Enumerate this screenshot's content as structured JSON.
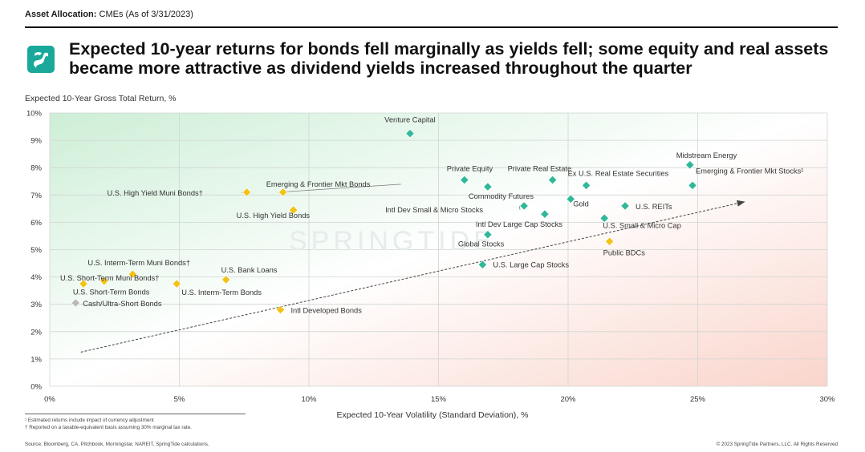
{
  "header": {
    "label_bold": "Asset Allocation:",
    "label_rest": " CMEs (As of 3/31/2023)"
  },
  "title": "Expected 10-year returns for bonds fell marginally as yields fell; some equity and real assets became more attractive as dividend yields increased throughout the quarter",
  "watermark": "SPRINGTIDE",
  "colors": {
    "equity": "#2fb89a",
    "bonds": "#f2c215",
    "cash": "#b9b9b9",
    "arrow": "#444444",
    "bg_green": "#d5efdc",
    "bg_red": "#fbd9d2",
    "logo": "#1aa89b"
  },
  "footnotes": {
    "f1": "¹ Estimated returns include impact of currency adjustment",
    "f2": "† Reported on a taxable-equivalent basis assuming 30% marginal tax rate.",
    "source": "Source: Bloomberg, CA, Pitchbook, Morningstar, NAREIT, SpringTide calculations.",
    "copyright": "© 2023 SpringTide Partners, LLC. All Rights Reserved"
  },
  "chart_data": {
    "type": "scatter",
    "xlabel": "Expected 10-Year Volatility (Standard Deviation), %",
    "ylabel": "Expected 10-Year Gross Total Return, %",
    "xlim": [
      0,
      30
    ],
    "ylim": [
      0,
      10
    ],
    "x_ticks": [
      0,
      5,
      10,
      15,
      20,
      25,
      30
    ],
    "x_tick_labels": [
      "0%",
      "5%",
      "10%",
      "15%",
      "20%",
      "25%",
      "30%"
    ],
    "y_ticks": [
      0,
      1,
      2,
      3,
      4,
      5,
      6,
      7,
      8,
      9,
      10
    ],
    "y_tick_labels": [
      "0%",
      "1%",
      "2%",
      "3%",
      "4%",
      "5%",
      "6%",
      "7%",
      "8%",
      "9%",
      "10%"
    ],
    "grid": true,
    "trend_arrow": {
      "from": [
        1.2,
        1.25
      ],
      "to": [
        26.8,
        6.75
      ]
    },
    "points": [
      {
        "label": "Venture Capital",
        "x": 13.9,
        "y": 9.25,
        "group": "equity"
      },
      {
        "label": "Midstream Energy",
        "x": 24.7,
        "y": 8.1,
        "group": "equity"
      },
      {
        "label": "Private Equity",
        "x": 16.0,
        "y": 7.55,
        "group": "equity"
      },
      {
        "label": "Private Real Estate",
        "x": 19.4,
        "y": 7.55,
        "group": "equity"
      },
      {
        "label": "Ex U.S. Real Estate Securities",
        "x": 20.7,
        "y": 7.35,
        "group": "equity"
      },
      {
        "label": "Emerging & Frontier Mkt Stocks¹",
        "x": 24.8,
        "y": 7.35,
        "group": "equity"
      },
      {
        "label": "Commodity Futures",
        "x": 16.9,
        "y": 7.3,
        "group": "equity"
      },
      {
        "label": "Gold",
        "x": 20.1,
        "y": 6.85,
        "group": "equity"
      },
      {
        "label": "Intl Dev Small & Micro Stocks",
        "x": 18.3,
        "y": 6.6,
        "group": "equity"
      },
      {
        "label": "U.S. REITs",
        "x": 22.2,
        "y": 6.6,
        "group": "equity"
      },
      {
        "label": "Intl Dev Large Cap Stocks",
        "x": 19.1,
        "y": 6.3,
        "group": "equity"
      },
      {
        "label": "U.S. Small & Micro Cap",
        "x": 21.4,
        "y": 6.15,
        "group": "equity"
      },
      {
        "label": "Global Stocks",
        "x": 16.9,
        "y": 5.55,
        "group": "equity"
      },
      {
        "label": "U.S. Large Cap Stocks",
        "x": 16.7,
        "y": 4.45,
        "group": "equity"
      },
      {
        "label": "Public BDCs",
        "x": 21.6,
        "y": 5.3,
        "group": "bonds"
      },
      {
        "label": "U.S. High Yield Muni Bonds†",
        "x": 7.6,
        "y": 7.1,
        "group": "bonds"
      },
      {
        "label": "Emerging & Frontier Mkt Bonds",
        "x": 9.0,
        "y": 7.1,
        "group": "bonds"
      },
      {
        "label": "U.S. High Yield Bonds",
        "x": 9.4,
        "y": 6.45,
        "group": "bonds"
      },
      {
        "label": "U.S. Interm-Term Muni Bonds†",
        "x": 3.2,
        "y": 4.1,
        "group": "bonds"
      },
      {
        "label": "U.S. Bank Loans",
        "x": 6.8,
        "y": 3.9,
        "group": "bonds"
      },
      {
        "label": "U.S. Short-Term Muni Bonds†",
        "x": 1.3,
        "y": 3.75,
        "group": "bonds"
      },
      {
        "label": "U.S. Short-Term Bonds",
        "x": 2.1,
        "y": 3.85,
        "group": "bonds"
      },
      {
        "label": "U.S. Interm-Term Bonds",
        "x": 4.9,
        "y": 3.75,
        "group": "bonds"
      },
      {
        "label": "Cash/Ultra-Short Bonds",
        "x": 1.0,
        "y": 3.05,
        "group": "cash"
      },
      {
        "label": "Intl Developed Bonds",
        "x": 8.9,
        "y": 2.8,
        "group": "bonds"
      }
    ]
  }
}
